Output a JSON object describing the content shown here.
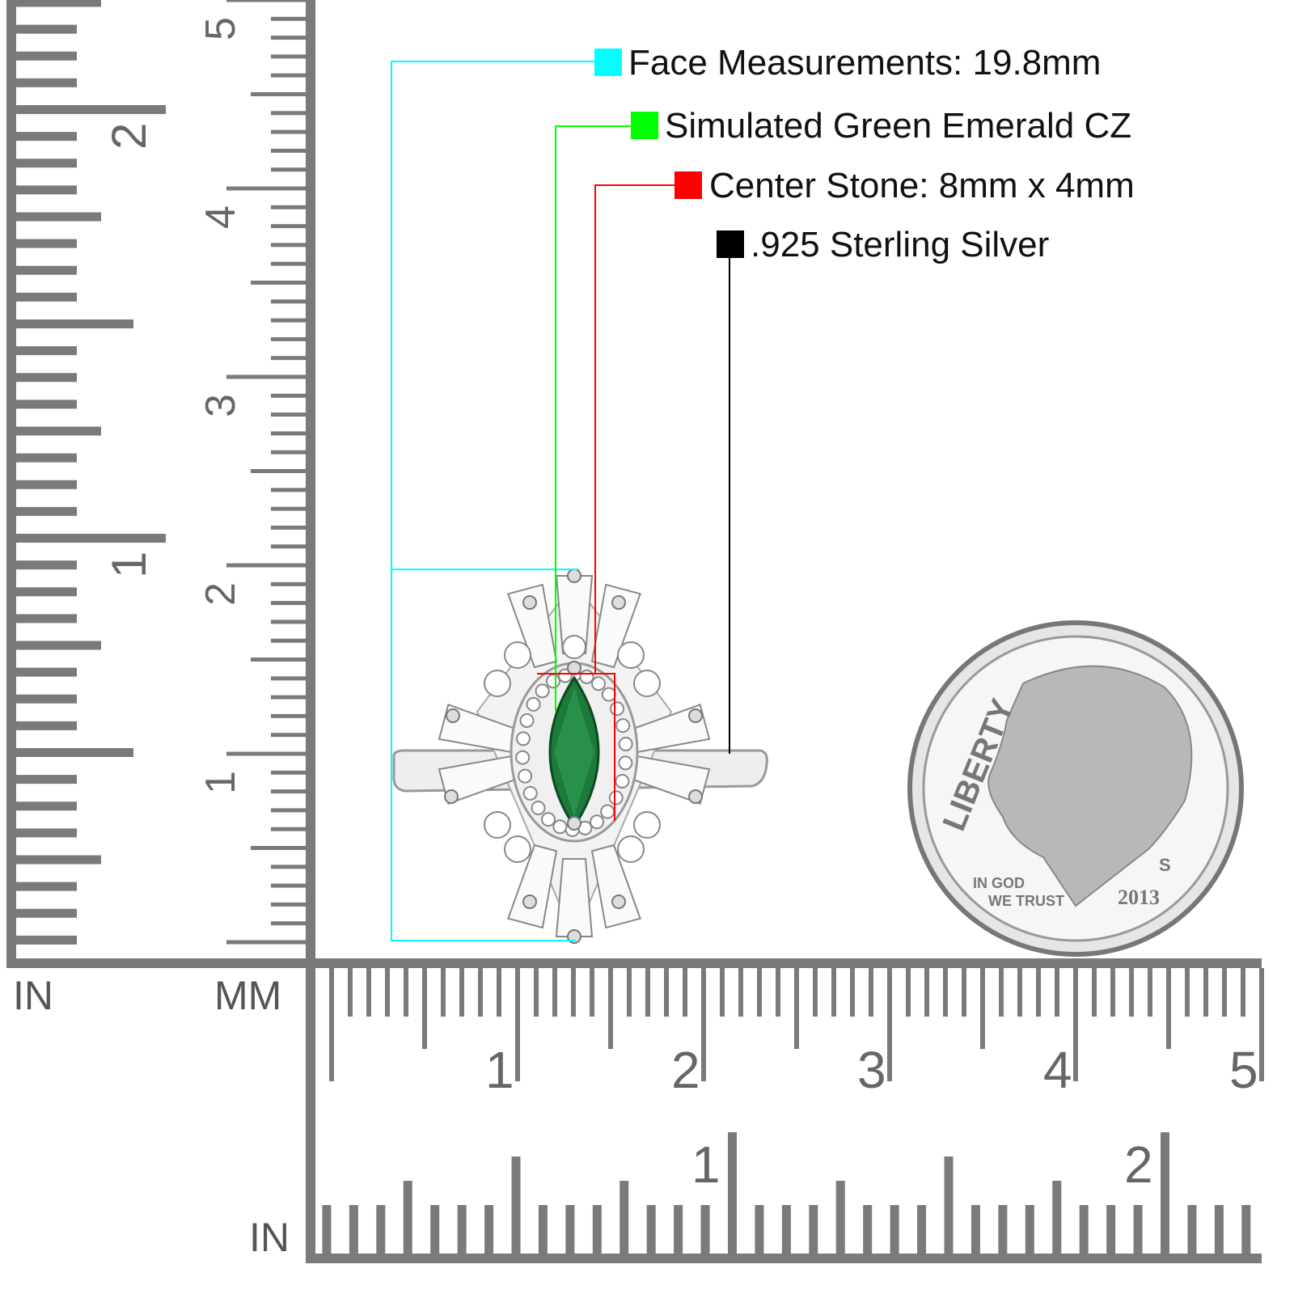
{
  "colors": {
    "face": "#00ffff",
    "emerald": "#00ff00",
    "center": "#ff0000",
    "silver": "#000000",
    "ruler": "#7a7a7a",
    "stone": "#1c7a3a"
  },
  "annotations": [
    {
      "label": "Face Measurements: 19.8mm",
      "color_key": "face"
    },
    {
      "label": "Simulated Green Emerald CZ",
      "color_key": "emerald"
    },
    {
      "label": "Center Stone: 8mm x 4mm",
      "color_key": "center"
    },
    {
      "label": ".925 Sterling Silver",
      "color_key": "silver"
    }
  ],
  "left_ruler": {
    "in_unit": "IN",
    "mm_unit": "MM",
    "in_labels": [
      "1",
      "2"
    ],
    "cm_labels": [
      "1",
      "2",
      "3",
      "4",
      "5"
    ]
  },
  "bottom_ruler": {
    "in_unit": "IN",
    "cm_labels": [
      "1",
      "2",
      "3",
      "4",
      "5"
    ],
    "in_labels": [
      "1",
      "2"
    ]
  },
  "coin": {
    "top_text": "LIBERTY",
    "motto_1": "IN GOD",
    "motto_2": "WE TRUST",
    "year": "2013",
    "mint": "S"
  }
}
